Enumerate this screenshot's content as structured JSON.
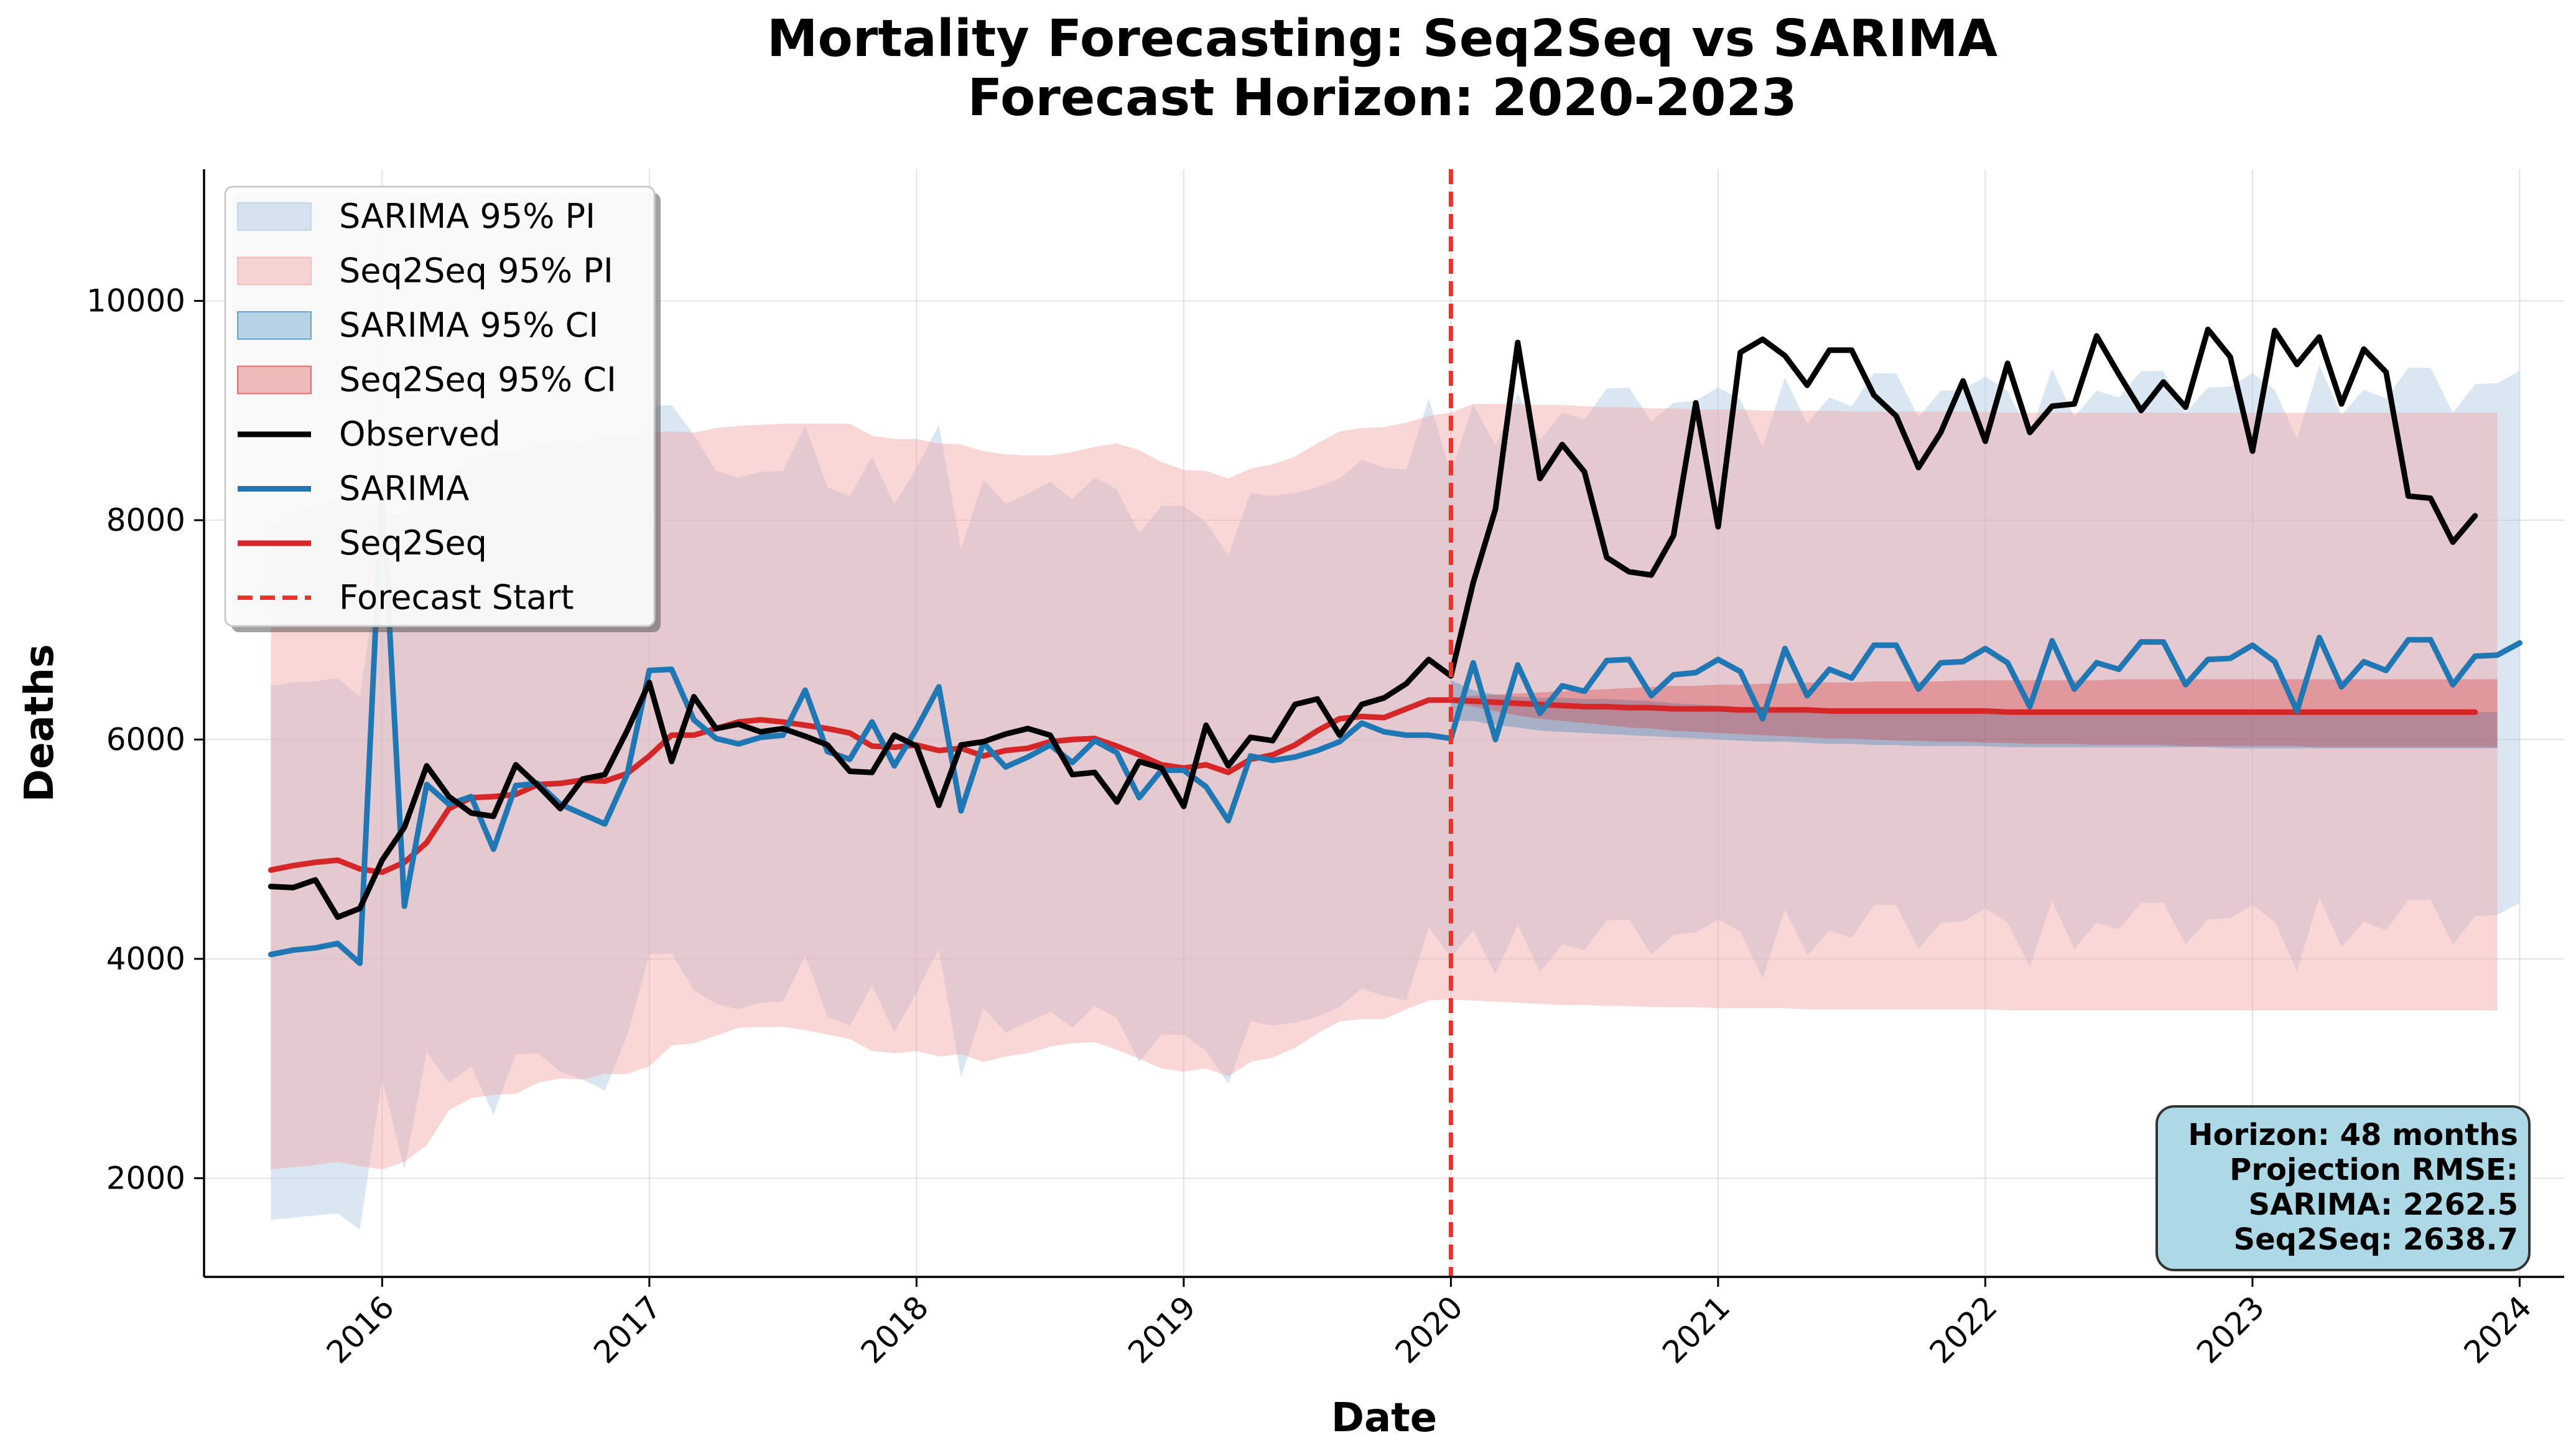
{
  "chart_data": {
    "type": "line",
    "title_line1": "Mortality Forecasting: Seq2Seq vs SARIMA",
    "title_line2": "Forecast Horizon: 2020-2023",
    "xlabel": "Date",
    "ylabel": "Deaths",
    "xlim": [
      "2015-05",
      "2024-03"
    ],
    "ylim": [
      1100,
      11200
    ],
    "x_ticks": [
      "2016",
      "2017",
      "2018",
      "2019",
      "2020",
      "2021",
      "2022",
      "2023",
      "2024"
    ],
    "y_ticks": [
      "2000",
      "4000",
      "6000",
      "8000",
      "10000"
    ],
    "grid": true,
    "legend_position": "upper-left",
    "legend": [
      "SARIMA 95% PI",
      "Seq2Seq 95% PI",
      "SARIMA 95% CI",
      "Seq2Seq 95% CI",
      "Observed",
      "SARIMA",
      "Seq2Seq",
      "Forecast Start"
    ],
    "colors": {
      "observed": "#000000",
      "sarima": "#1f77b4",
      "seq2seq": "#d62728",
      "sarima_pi_fill": "#a8c6e3",
      "seq2seq_pi_fill": "#f2a0a0",
      "sarima_ci_fill": "#1f77b4",
      "seq2seq_ci_fill": "#d62728",
      "forecast_start": "#e8342a",
      "annotation_bg": "#add8e6"
    },
    "forecast_start": "2020-01",
    "start": "2015-08",
    "annotation": [
      "Horizon: 48 months",
      "Projection RMSE:",
      "SARIMA: 2262.5",
      "Seq2Seq: 2638.7"
    ],
    "series": [
      {
        "name": "Observed",
        "values": [
          4660,
          4650,
          4720,
          4380,
          4460,
          4900,
          5200,
          5760,
          5480,
          5330,
          5300,
          5770,
          5580,
          5370,
          5640,
          5680,
          6080,
          6520,
          5800,
          6390,
          6100,
          6140,
          6070,
          6100,
          6030,
          5950,
          5710,
          5700,
          6040,
          5940,
          5400,
          5950,
          5980,
          6050,
          6100,
          6040,
          5680,
          5700,
          5430,
          5800,
          5740,
          5390,
          6130,
          5760,
          6020,
          5990,
          6320,
          6370,
          6040,
          6320,
          6380,
          6510,
          6730,
          6580,
          7430,
          8100,
          9620,
          8380,
          8690,
          8440,
          7660,
          7530,
          7500,
          7860,
          9070,
          7940,
          9530,
          9650,
          9500,
          9230,
          9550,
          9550,
          9140,
          8950,
          8480,
          8800,
          9270,
          8720,
          9430,
          8800,
          9040,
          9060,
          9680,
          9330,
          9000,
          9260,
          9030,
          9740,
          9490,
          8630,
          9730,
          9420,
          9670,
          9060,
          9560,
          9350,
          8220,
          8200,
          7800,
          8040
        ]
      },
      {
        "name": "SARIMA",
        "values": [
          4040,
          4080,
          4100,
          4140,
          3960,
          8300,
          4480,
          5590,
          5410,
          5480,
          5000,
          5580,
          5600,
          5410,
          5320,
          5230,
          5680,
          6630,
          6640,
          6180,
          6010,
          5960,
          6020,
          6040,
          6450,
          5890,
          5820,
          6160,
          5760,
          6100,
          6480,
          5350,
          5970,
          5750,
          5840,
          5950,
          5790,
          5990,
          5880,
          5470,
          5720,
          5720,
          5570,
          5260,
          5850,
          5810,
          5840,
          5900,
          5980,
          6150,
          6070,
          6040,
          6040,
          6010,
          6700,
          6000,
          6680,
          6240,
          6490,
          6440,
          6720,
          6730,
          6400,
          6590,
          6610,
          6730,
          6620,
          6190,
          6830,
          6400,
          6640,
          6560,
          6860,
          6860,
          6460,
          6700,
          6710,
          6830,
          6700,
          6300,
          6900,
          6460,
          6700,
          6640,
          6890,
          6890,
          6500,
          6730,
          6740,
          6860,
          6710,
          6260,
          6930,
          6480,
          6710,
          6630,
          6910,
          6910,
          6500,
          6760,
          6770,
          6880
        ]
      },
      {
        "name": "Seq2Seq",
        "values": [
          4810,
          4850,
          4880,
          4900,
          4820,
          4790,
          4880,
          5060,
          5370,
          5470,
          5480,
          5500,
          5590,
          5600,
          5630,
          5620,
          5690,
          5850,
          6040,
          6040,
          6100,
          6160,
          6180,
          6160,
          6130,
          6100,
          6060,
          5940,
          5930,
          5950,
          5900,
          5920,
          5850,
          5900,
          5920,
          5980,
          6000,
          6010,
          5940,
          5860,
          5770,
          5740,
          5770,
          5700,
          5820,
          5860,
          5950,
          6080,
          6190,
          6210,
          6200,
          6280,
          6360,
          6360,
          6350,
          6340,
          6330,
          6320,
          6310,
          6300,
          6300,
          6290,
          6290,
          6280,
          6280,
          6280,
          6270,
          6270,
          6270,
          6270,
          6260,
          6260,
          6260,
          6260,
          6260,
          6260,
          6260,
          6260,
          6250,
          6250,
          6250,
          6250,
          6250,
          6250,
          6250,
          6250,
          6250,
          6250,
          6250,
          6250,
          6250,
          6250,
          6250,
          6250,
          6250,
          6250,
          6250,
          6250,
          6250,
          6250
        ]
      }
    ],
    "bands": [
      {
        "name": "SARIMA 95% PI",
        "upper": [
          6490,
          6520,
          6530,
          6560,
          6390,
          7800,
          6980,
          8100,
          7990,
          8070,
          7580,
          8140,
          8170,
          8000,
          7920,
          7840,
          8280,
          9040,
          9050,
          8780,
          8450,
          8390,
          8440,
          8450,
          8860,
          8300,
          8220,
          8580,
          8140,
          8480,
          8870,
          7740,
          8370,
          8150,
          8240,
          8350,
          8190,
          8390,
          8280,
          7880,
          8130,
          8130,
          7980,
          7680,
          8250,
          8220,
          8250,
          8300,
          8380,
          8550,
          8480,
          8460,
          9110,
          8430,
          9060,
          8680,
          9160,
          8730,
          8980,
          8920,
          9200,
          9210,
          8900,
          9070,
          9090,
          9210,
          9100,
          8670,
          9300,
          8880,
          9120,
          9040,
          9340,
          9340,
          8940,
          9180,
          9190,
          9310,
          9180,
          8780,
          9380,
          8940,
          9180,
          9120,
          9360,
          9360,
          8980,
          9210,
          9220,
          9340,
          9190,
          8740,
          9410,
          8960,
          9190,
          9110,
          9390,
          9390,
          8980,
          9240,
          9250,
          9360
        ],
        "lower": [
          1620,
          1640,
          1660,
          1680,
          1530,
          2900,
          2080,
          3150,
          2870,
          3020,
          2580,
          3130,
          3140,
          2970,
          2900,
          2800,
          3300,
          4040,
          4050,
          3710,
          3590,
          3540,
          3600,
          3610,
          4030,
          3470,
          3390,
          3760,
          3330,
          3690,
          4090,
          2920,
          3550,
          3330,
          3420,
          3520,
          3370,
          3570,
          3460,
          3060,
          3310,
          3310,
          3160,
          2860,
          3430,
          3390,
          3420,
          3470,
          3560,
          3730,
          3660,
          3620,
          4290,
          4010,
          4260,
          3860,
          4310,
          3880,
          4130,
          4080,
          4350,
          4360,
          4040,
          4220,
          4240,
          4360,
          4250,
          3820,
          4450,
          4030,
          4260,
          4190,
          4490,
          4490,
          4090,
          4330,
          4340,
          4460,
          4330,
          3930,
          4530,
          4090,
          4330,
          4270,
          4510,
          4510,
          4130,
          4360,
          4370,
          4490,
          4340,
          3890,
          4560,
          4110,
          4340,
          4260,
          4540,
          4540,
          4130,
          4390,
          4400,
          4510
        ]
      },
      {
        "name": "Seq2Seq 95% PI",
        "upper": [
          7950,
          8050,
          8140,
          8180,
          8130,
          8060,
          8060,
          8190,
          8390,
          8550,
          8620,
          8620,
          8680,
          8720,
          8700,
          8770,
          8750,
          8800,
          8810,
          8800,
          8840,
          8860,
          8870,
          8880,
          8880,
          8880,
          8880,
          8770,
          8740,
          8740,
          8700,
          8690,
          8630,
          8600,
          8590,
          8590,
          8620,
          8670,
          8700,
          8640,
          8530,
          8460,
          8450,
          8380,
          8470,
          8510,
          8580,
          8700,
          8810,
          8840,
          8850,
          8890,
          8950,
          8980,
          9060,
          9060,
          9060,
          9050,
          9050,
          9040,
          9030,
          9030,
          9020,
          9020,
          9010,
          9010,
          9010,
          9000,
          9000,
          9000,
          9000,
          8990,
          8990,
          8990,
          8990,
          8990,
          8990,
          8990,
          8980,
          8980,
          8980,
          8980,
          8980,
          8980,
          8980,
          8980,
          8980,
          8980,
          8980,
          8980,
          8980,
          8980,
          8980,
          8980,
          8980,
          8980,
          8980,
          8980,
          8980,
          8980,
          8980
        ],
        "lower": [
          2080,
          2100,
          2120,
          2150,
          2110,
          2080,
          2150,
          2300,
          2620,
          2730,
          2760,
          2770,
          2870,
          2910,
          2900,
          2950,
          2950,
          3020,
          3210,
          3230,
          3300,
          3370,
          3380,
          3380,
          3350,
          3310,
          3270,
          3160,
          3140,
          3160,
          3110,
          3130,
          3060,
          3110,
          3140,
          3200,
          3230,
          3240,
          3170,
          3090,
          3000,
          2970,
          3000,
          2930,
          3060,
          3100,
          3190,
          3320,
          3430,
          3450,
          3450,
          3540,
          3620,
          3630,
          3620,
          3610,
          3600,
          3590,
          3580,
          3580,
          3570,
          3570,
          3560,
          3560,
          3560,
          3550,
          3550,
          3550,
          3550,
          3540,
          3540,
          3540,
          3540,
          3540,
          3540,
          3540,
          3540,
          3540,
          3530,
          3530,
          3530,
          3530,
          3530,
          3530,
          3530,
          3530,
          3530,
          3530,
          3530,
          3530,
          3530,
          3530,
          3530,
          3530,
          3530,
          3530,
          3530,
          3530,
          3530,
          3530,
          3530
        ]
      },
      {
        "name": "SARIMA 95% CI",
        "upper": [
          6540,
          6450,
          6410,
          6390,
          6380,
          6380,
          6370,
          6370,
          6360,
          6350,
          6330,
          6320,
          6310,
          6300,
          6290,
          6290,
          6280,
          6280,
          6280,
          6270,
          6270,
          6270,
          6270,
          6270,
          6260,
          6260,
          6260,
          6260,
          6260,
          6260,
          6260,
          6260,
          6260,
          6260,
          6260,
          6260,
          6260,
          6260,
          6260,
          6250,
          6250,
          6250,
          6250,
          6250,
          6250,
          6250,
          6250,
          6250
        ],
        "lower": [
          6170,
          6170,
          6130,
          6110,
          6080,
          6070,
          6060,
          6050,
          6040,
          6030,
          6020,
          6010,
          6000,
          5990,
          5980,
          5980,
          5970,
          5960,
          5960,
          5950,
          5950,
          5940,
          5940,
          5940,
          5940,
          5930,
          5930,
          5930,
          5930,
          5930,
          5930,
          5930,
          5930,
          5930,
          5930,
          5920,
          5920,
          5920,
          5920,
          5920,
          5920,
          5920,
          5920,
          5920,
          5920,
          5920,
          5920,
          5920
        ]
      },
      {
        "name": "Seq2Seq 95% CI",
        "upper": [
          6380,
          6400,
          6410,
          6420,
          6430,
          6440,
          6450,
          6460,
          6470,
          6480,
          6490,
          6490,
          6500,
          6500,
          6510,
          6510,
          6520,
          6520,
          6520,
          6530,
          6530,
          6530,
          6530,
          6540,
          6540,
          6540,
          6540,
          6540,
          6540,
          6540,
          6550,
          6550,
          6550,
          6550,
          6550,
          6550,
          6550,
          6550,
          6550,
          6550,
          6550,
          6550,
          6550,
          6550,
          6550,
          6550,
          6550,
          6550
        ],
        "lower": [
          6340,
          6300,
          6260,
          6220,
          6190,
          6170,
          6150,
          6130,
          6110,
          6100,
          6080,
          6070,
          6060,
          6050,
          6040,
          6030,
          6020,
          6010,
          6010,
          6000,
          5990,
          5990,
          5980,
          5980,
          5970,
          5970,
          5960,
          5960,
          5960,
          5950,
          5950,
          5950,
          5950,
          5940,
          5940,
          5940,
          5940,
          5940,
          5940,
          5930,
          5930,
          5930,
          5930,
          5930,
          5930,
          5930,
          5930,
          5930
        ]
      }
    ]
  }
}
